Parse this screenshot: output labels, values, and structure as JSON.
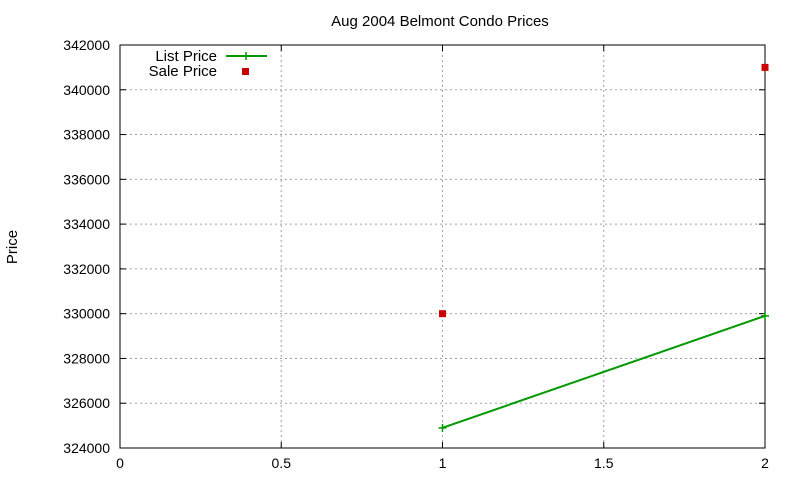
{
  "chart_data": {
    "type": "line",
    "title": "Aug 2004 Belmont Condo Prices",
    "xlabel": "",
    "ylabel": "Price",
    "xlim": [
      0,
      2
    ],
    "ylim": [
      324000,
      342000
    ],
    "x_ticks": [
      "0",
      "0.5",
      "1",
      "1.5",
      "2"
    ],
    "y_ticks": [
      "324000",
      "326000",
      "328000",
      "330000",
      "332000",
      "334000",
      "336000",
      "338000",
      "340000",
      "342000"
    ],
    "grid": true,
    "legend_position": "top-left",
    "series": [
      {
        "name": "List Price",
        "style": "linespoints",
        "marker": "plus",
        "color": "#009900",
        "x": [
          1,
          2
        ],
        "y": [
          324900,
          329900
        ]
      },
      {
        "name": "Sale Price",
        "style": "points",
        "marker": "square",
        "color": "#cc0000",
        "x": [
          1,
          2
        ],
        "y": [
          330000,
          341000
        ]
      }
    ]
  }
}
